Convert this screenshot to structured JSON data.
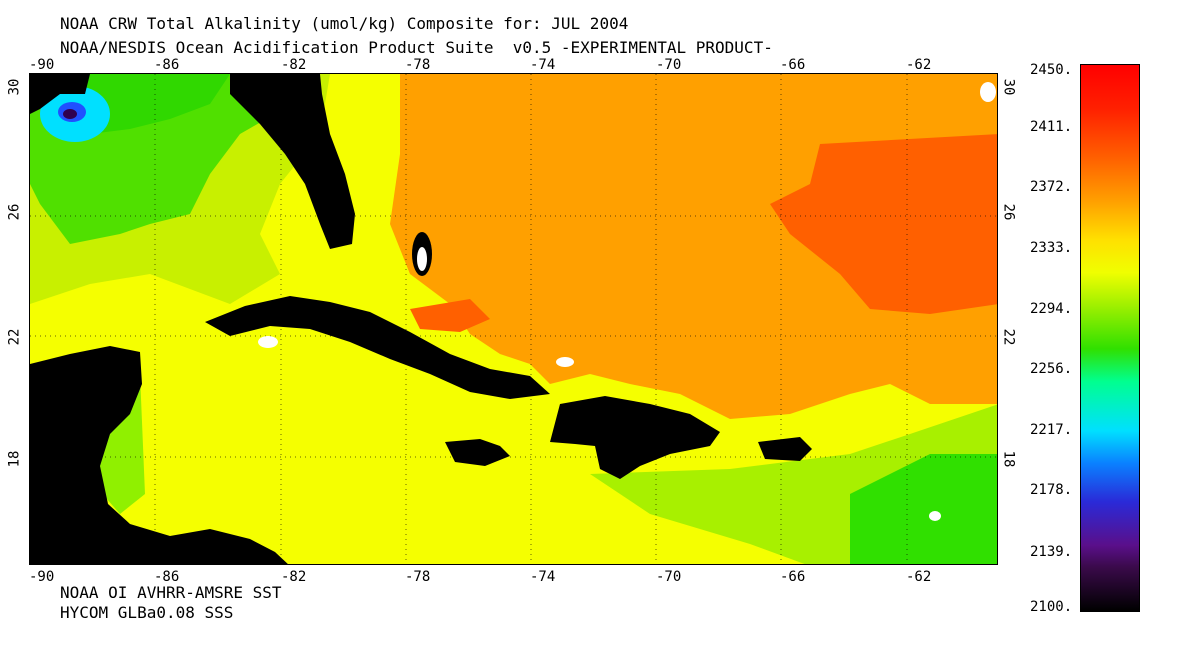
{
  "title_line1": "NOAA CRW Total Alkalinity (umol/kg) Composite for: JUL 2004",
  "title_line2": "NOAA/NESDIS Ocean Acidification Product Suite  v0.5 -EXPERIMENTAL PRODUCT-",
  "footer_line1": "NOAA OI AVHRR-AMSRE SST",
  "footer_line2": "HYCOM GLBa0.08 SSS",
  "lon_ticks": [
    "-90",
    "-86",
    "-82",
    "-78",
    "-74",
    "-70",
    "-66",
    "-62"
  ],
  "lat_ticks": [
    "30",
    "26",
    "22",
    "18"
  ],
  "colorbar_labels": [
    "2450.",
    "2411.",
    "2372.",
    "2333.",
    "2294.",
    "2256.",
    "2217.",
    "2178.",
    "2139.",
    "2100."
  ],
  "colors": {
    "land": "#000000",
    "low": "#000000",
    "mid": "#ffff00",
    "orange": "#ffa000",
    "dark_orange": "#ff6000",
    "green": "#30e000",
    "light_green": "#a0f000",
    "cyan": "#00e0ff"
  }
}
